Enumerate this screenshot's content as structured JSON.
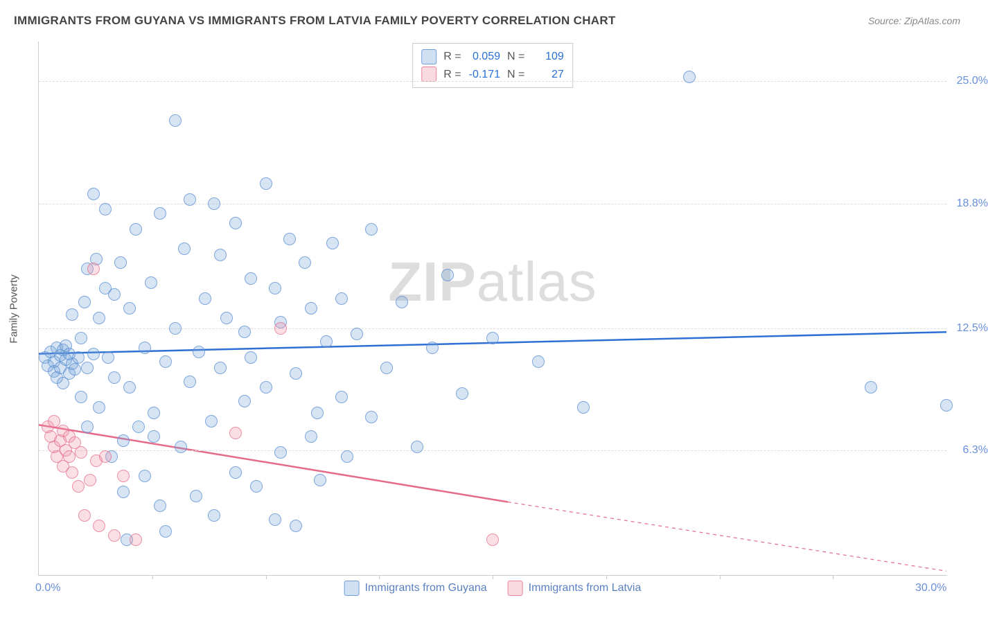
{
  "header": {
    "title": "IMMIGRANTS FROM GUYANA VS IMMIGRANTS FROM LATVIA FAMILY POVERTY CORRELATION CHART",
    "source_prefix": "Source: ",
    "source_name": "ZipAtlas.com"
  },
  "watermark": {
    "zip": "ZIP",
    "atlas": "atlas"
  },
  "chart": {
    "type": "scatter",
    "ylabel": "Family Poverty",
    "xlim": [
      0.0,
      30.0
    ],
    "ylim": [
      0.0,
      27.0
    ],
    "x_axis_labels": [
      {
        "value": 0.0,
        "text": "0.0%"
      },
      {
        "value": 30.0,
        "text": "30.0%"
      }
    ],
    "x_ticks": [
      3.75,
      7.5,
      11.25,
      15.0,
      18.75,
      22.5,
      26.25
    ],
    "y_gridlines": [
      {
        "value": 6.3,
        "text": "6.3%"
      },
      {
        "value": 12.5,
        "text": "12.5%"
      },
      {
        "value": 18.8,
        "text": "18.8%"
      },
      {
        "value": 25.0,
        "text": "25.0%"
      }
    ],
    "background_color": "#ffffff",
    "grid_color": "#dddddd",
    "axis_color": "#cccccc",
    "label_color": "#6a8fd8",
    "series": [
      {
        "name": "Immigrants from Guyana",
        "color_fill": "rgba(120,165,220,0.3)",
        "color_stroke": "rgba(90,140,210,0.7)",
        "marker_size": 18,
        "R": "0.059",
        "N": "109",
        "trend": {
          "x1": 0.0,
          "y1": 11.2,
          "x2": 30.0,
          "y2": 12.3,
          "color": "#2e6fd6",
          "width": 2.5,
          "dash_after": 30.0
        },
        "points": [
          [
            0.2,
            11.0
          ],
          [
            0.3,
            10.6
          ],
          [
            0.4,
            11.3
          ],
          [
            0.5,
            10.8
          ],
          [
            0.5,
            10.3
          ],
          [
            0.6,
            11.5
          ],
          [
            0.6,
            10.0
          ],
          [
            0.7,
            11.1
          ],
          [
            0.7,
            10.5
          ],
          [
            0.8,
            11.4
          ],
          [
            0.8,
            9.7
          ],
          [
            0.9,
            10.9
          ],
          [
            0.9,
            11.6
          ],
          [
            1.0,
            10.2
          ],
          [
            1.0,
            11.2
          ],
          [
            1.1,
            10.7
          ],
          [
            1.1,
            13.2
          ],
          [
            1.2,
            10.4
          ],
          [
            1.3,
            11.0
          ],
          [
            1.4,
            12.0
          ],
          [
            1.4,
            9.0
          ],
          [
            1.5,
            13.8
          ],
          [
            1.6,
            10.5
          ],
          [
            1.6,
            15.5
          ],
          [
            1.8,
            19.3
          ],
          [
            1.8,
            11.2
          ],
          [
            1.9,
            16.0
          ],
          [
            2.0,
            8.5
          ],
          [
            2.0,
            13.0
          ],
          [
            2.2,
            18.5
          ],
          [
            2.3,
            11.0
          ],
          [
            2.4,
            6.0
          ],
          [
            2.5,
            14.2
          ],
          [
            2.5,
            10.0
          ],
          [
            2.7,
            15.8
          ],
          [
            2.8,
            6.8
          ],
          [
            2.9,
            1.8
          ],
          [
            3.0,
            13.5
          ],
          [
            3.0,
            9.5
          ],
          [
            3.2,
            17.5
          ],
          [
            3.3,
            7.5
          ],
          [
            3.5,
            5.0
          ],
          [
            3.5,
            11.5
          ],
          [
            3.7,
            14.8
          ],
          [
            3.8,
            8.2
          ],
          [
            4.0,
            18.3
          ],
          [
            4.0,
            3.5
          ],
          [
            4.2,
            10.8
          ],
          [
            4.5,
            23.0
          ],
          [
            4.5,
            12.5
          ],
          [
            4.7,
            6.5
          ],
          [
            4.8,
            16.5
          ],
          [
            5.0,
            9.8
          ],
          [
            5.0,
            19.0
          ],
          [
            5.2,
            4.0
          ],
          [
            5.3,
            11.3
          ],
          [
            5.5,
            14.0
          ],
          [
            5.7,
            7.8
          ],
          [
            5.8,
            3.0
          ],
          [
            6.0,
            10.5
          ],
          [
            6.0,
            16.2
          ],
          [
            6.2,
            13.0
          ],
          [
            6.5,
            5.2
          ],
          [
            6.5,
            17.8
          ],
          [
            6.8,
            8.8
          ],
          [
            7.0,
            15.0
          ],
          [
            7.0,
            11.0
          ],
          [
            7.2,
            4.5
          ],
          [
            7.5,
            19.8
          ],
          [
            7.5,
            9.5
          ],
          [
            7.8,
            14.5
          ],
          [
            8.0,
            6.2
          ],
          [
            8.0,
            12.8
          ],
          [
            8.3,
            17.0
          ],
          [
            8.5,
            2.5
          ],
          [
            8.5,
            10.2
          ],
          [
            8.8,
            15.8
          ],
          [
            9.0,
            7.0
          ],
          [
            9.0,
            13.5
          ],
          [
            9.3,
            4.8
          ],
          [
            9.5,
            11.8
          ],
          [
            9.7,
            16.8
          ],
          [
            10.0,
            9.0
          ],
          [
            10.0,
            14.0
          ],
          [
            10.2,
            6.0
          ],
          [
            10.5,
            12.2
          ],
          [
            11.0,
            8.0
          ],
          [
            11.0,
            17.5
          ],
          [
            11.5,
            10.5
          ],
          [
            12.0,
            13.8
          ],
          [
            12.5,
            6.5
          ],
          [
            13.0,
            11.5
          ],
          [
            13.5,
            15.2
          ],
          [
            14.0,
            9.2
          ],
          [
            15.0,
            12.0
          ],
          [
            16.5,
            10.8
          ],
          [
            18.0,
            8.5
          ],
          [
            21.5,
            25.2
          ],
          [
            27.5,
            9.5
          ],
          [
            30.0,
            8.6
          ],
          [
            4.2,
            2.2
          ],
          [
            5.8,
            18.8
          ],
          [
            6.8,
            12.3
          ],
          [
            7.8,
            2.8
          ],
          [
            9.2,
            8.2
          ],
          [
            2.8,
            4.2
          ],
          [
            3.8,
            7.0
          ],
          [
            1.6,
            7.5
          ],
          [
            2.2,
            14.5
          ]
        ]
      },
      {
        "name": "Immigrants from Latvia",
        "color_fill": "rgba(240,150,170,0.3)",
        "color_stroke": "rgba(230,110,140,0.8)",
        "marker_size": 18,
        "R": "-0.171",
        "N": "27",
        "trend": {
          "x1": 0.0,
          "y1": 7.6,
          "x2": 15.5,
          "y2": 3.7,
          "color": "#e56b8a",
          "width": 2.5,
          "dash_after": 15.5,
          "dash_x2": 30.0,
          "dash_y2": 0.2
        },
        "points": [
          [
            0.3,
            7.5
          ],
          [
            0.4,
            7.0
          ],
          [
            0.5,
            6.5
          ],
          [
            0.5,
            7.8
          ],
          [
            0.6,
            6.0
          ],
          [
            0.7,
            6.8
          ],
          [
            0.8,
            7.3
          ],
          [
            0.8,
            5.5
          ],
          [
            0.9,
            6.3
          ],
          [
            1.0,
            6.0
          ],
          [
            1.0,
            7.0
          ],
          [
            1.1,
            5.2
          ],
          [
            1.2,
            6.7
          ],
          [
            1.3,
            4.5
          ],
          [
            1.4,
            6.2
          ],
          [
            1.5,
            3.0
          ],
          [
            1.7,
            4.8
          ],
          [
            1.8,
            15.5
          ],
          [
            1.9,
            5.8
          ],
          [
            2.0,
            2.5
          ],
          [
            2.2,
            6.0
          ],
          [
            2.5,
            2.0
          ],
          [
            2.8,
            5.0
          ],
          [
            3.2,
            1.8
          ],
          [
            6.5,
            7.2
          ],
          [
            8.0,
            12.5
          ],
          [
            15.0,
            1.8
          ]
        ]
      }
    ]
  },
  "legend_bottom": [
    {
      "label": "Immigrants from Guyana",
      "swatch": "blue"
    },
    {
      "label": "Immigrants from Latvia",
      "swatch": "pink"
    }
  ]
}
